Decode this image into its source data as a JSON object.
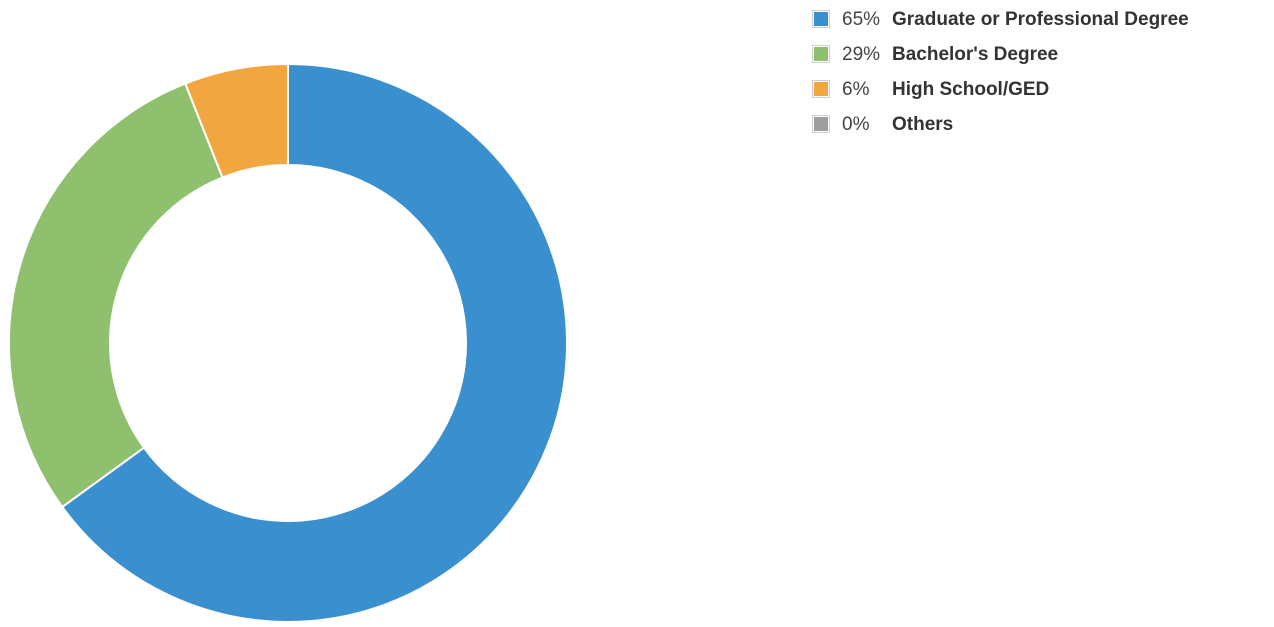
{
  "chart_data": {
    "type": "pie",
    "donut": true,
    "categories": [
      "Graduate or Professional Degree",
      "Bachelor's Degree",
      "High School/GED",
      "Others"
    ],
    "values": [
      65,
      29,
      6,
      0
    ],
    "labels": [
      "65%",
      "29%",
      "6%",
      "0%"
    ],
    "colors": [
      "#3a8fce",
      "#8fc06e",
      "#f2a640",
      "#9e9e9e"
    ],
    "legend_position": "right"
  }
}
